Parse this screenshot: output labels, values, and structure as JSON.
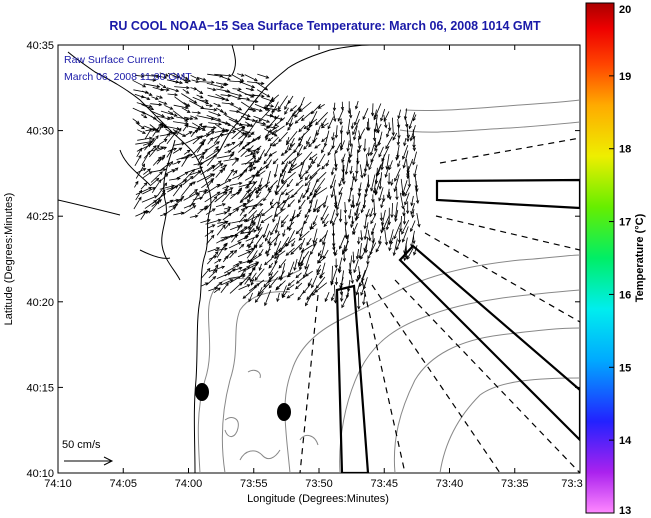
{
  "title": "RU COOL  NOAA−15  Sea Surface Temperature:  March 06, 2008 1014 GMT",
  "annotation": {
    "line1": "Raw Surface Current:",
    "line2": "March 06, 2008 11:00 GMT"
  },
  "scale_label": "50 cm/s",
  "x_axis": {
    "label": "Longitude (Degrees:Minutes)",
    "ticks": [
      "74:10",
      "74:05",
      "74:00",
      "73:55",
      "73:50",
      "73:45",
      "73:40",
      "73:35",
      "73:3"
    ],
    "lon_min_deg_west": 74.1667,
    "lon_max_deg_west": 73.5
  },
  "y_axis": {
    "label": "Latitude (Degrees:Minutes)",
    "ticks": [
      "40:35",
      "40:30",
      "40:25",
      "40:20",
      "40:15",
      "40:10"
    ],
    "lat_min": 40.1667,
    "lat_max": 40.5833
  },
  "colorbar": {
    "label": "Temperature (°C)",
    "ticks": [
      "20",
      "19",
      "18",
      "17",
      "16",
      "15",
      "14",
      "13"
    ],
    "min": 13,
    "max": 20,
    "colors": [
      "#ff66ff",
      "#aa22ee",
      "#2222ff",
      "#00aaff",
      "#00eeee",
      "#00ee66",
      "#66ee00",
      "#eeee00",
      "#ffaa00",
      "#ff4400",
      "#ee0000",
      "#aa0000"
    ]
  },
  "markers": [
    {
      "name": "dot-1",
      "lon": 73.9833,
      "lat": 40.245
    },
    {
      "name": "dot-2",
      "lon": 73.875,
      "lat": 40.225
    }
  ],
  "colors": {
    "title": "#1a1aa8",
    "annotation": "#1a1aa8",
    "coastline": "#000000",
    "bathymetry": "#888888",
    "vectors": "#000000"
  }
}
